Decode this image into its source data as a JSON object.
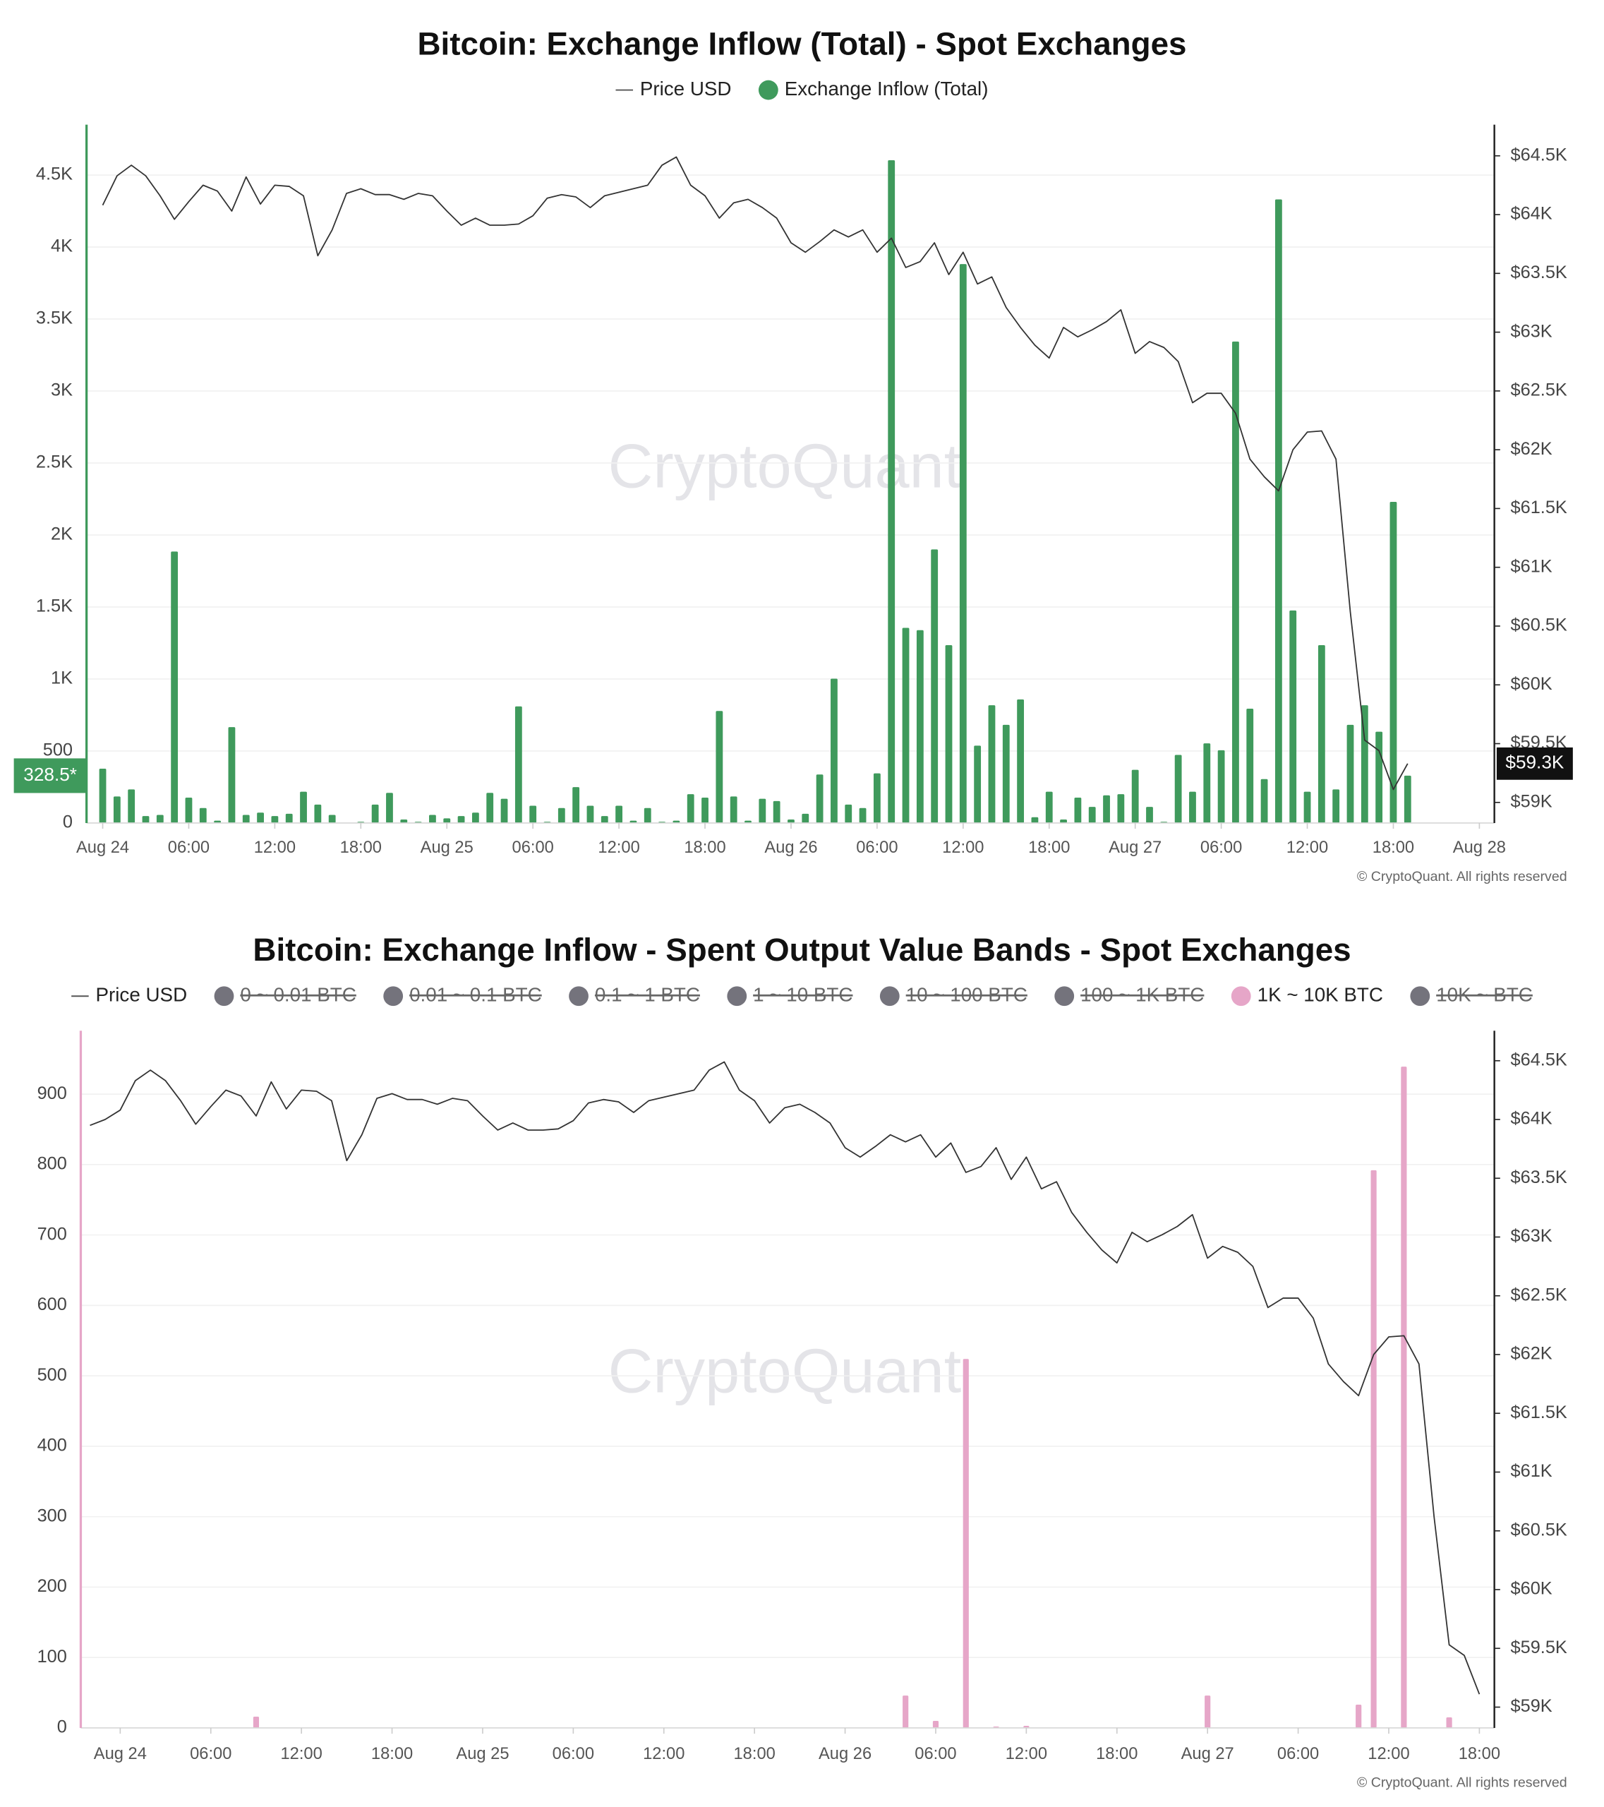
{
  "chart_data": [
    {
      "type": "bar",
      "title": "Bitcoin: Exchange Inflow (Total) - Spot Exchanges",
      "watermark": "CryptoQuant",
      "copyright": "© CryptoQuant. All rights reserved",
      "grid": true,
      "categories": [
        "Aug 24",
        null,
        null,
        null,
        null,
        null,
        "06:00",
        null,
        null,
        null,
        null,
        null,
        "12:00",
        null,
        null,
        null,
        null,
        null,
        "18:00",
        null,
        null,
        null,
        null,
        null,
        "Aug 25",
        null,
        null,
        null,
        null,
        null,
        "06:00",
        null,
        null,
        null,
        null,
        null,
        "12:00",
        null,
        null,
        null,
        null,
        null,
        "18:00",
        null,
        null,
        null,
        null,
        null,
        "Aug 26",
        null,
        null,
        null,
        null,
        null,
        "06:00",
        null,
        null,
        null,
        null,
        null,
        "12:00",
        null,
        null,
        null,
        null,
        null,
        "18:00",
        null,
        null,
        null,
        null,
        null,
        "Aug 27",
        null,
        null,
        null,
        null,
        null,
        "06:00",
        null,
        null,
        null,
        null,
        null,
        "12:00",
        null,
        null,
        null,
        null,
        null,
        "18:00",
        null,
        null,
        null,
        null,
        null,
        "Aug 28"
      ],
      "series": [
        {
          "name": "Price USD",
          "type": "line",
          "axis": "y2",
          "color": "#333333",
          "values": [
            64080,
            64330,
            64420,
            64330,
            64160,
            63960,
            64110,
            64250,
            64200,
            64030,
            64320,
            64090,
            64250,
            64240,
            64160,
            63650,
            63870,
            64180,
            64220,
            64170,
            64170,
            64130,
            64180,
            64160,
            64030,
            63910,
            63970,
            63910,
            63910,
            63920,
            63990,
            64140,
            64170,
            64150,
            64060,
            64160,
            64190,
            64220,
            64250,
            64420,
            64490,
            64250,
            64160,
            63970,
            64100,
            64130,
            64060,
            63970,
            63760,
            63680,
            63770,
            63870,
            63810,
            63870,
            63680,
            63800,
            63550,
            63600,
            63760,
            63490,
            63680,
            63410,
            63470,
            63210,
            63040,
            62890,
            62780,
            63040,
            62960,
            63020,
            63090,
            63190,
            62820,
            62920,
            62870,
            62750,
            62400,
            62480,
            62480,
            62310,
            61920,
            61770,
            61650,
            62000,
            62150,
            62160,
            61920,
            60620,
            59530,
            59440,
            59110,
            59330,
            null,
            null,
            null,
            null,
            null
          ]
        },
        {
          "name": "Exchange Inflow (Total)",
          "type": "bar",
          "color": "#3f9a5c",
          "values": [
            377,
            184,
            233,
            48,
            56,
            1885,
            176,
            104,
            16,
            666,
            56,
            72,
            48,
            64,
            217,
            128,
            56,
            0,
            8,
            128,
            209,
            24,
            8,
            56,
            32,
            48,
            72,
            209,
            168,
            810,
            120,
            8,
            104,
            249,
            120,
            48,
            120,
            16,
            104,
            8,
            16,
            200,
            176,
            778,
            184,
            16,
            168,
            152,
            24,
            64,
            337,
            1002,
            128,
            104,
            345,
            4603,
            1355,
            1339,
            1900,
            1235,
            3882,
            537,
            818,
            682,
            858,
            40,
            217,
            24,
            176,
            112,
            192,
            200,
            369,
            112,
            8,
            473,
            217,
            553,
            505,
            3344,
            794,
            305,
            4331,
            1476,
            217,
            1235,
            233,
            682,
            818,
            634,
            2230,
            328.5,
            null,
            null,
            null,
            null,
            null
          ]
        }
      ],
      "ylim": [
        0,
        4850
      ],
      "yticks": [
        0,
        500,
        {
          "value": 1000,
          "label": "1K"
        },
        {
          "value": 1500,
          "label": "1.5K"
        },
        {
          "value": 2000,
          "label": "2K"
        },
        {
          "value": 2500,
          "label": "2.5K"
        },
        {
          "value": 3000,
          "label": "3K"
        },
        {
          "value": 3500,
          "label": "3.5K"
        },
        {
          "value": 4000,
          "label": "4K"
        },
        {
          "value": 4500,
          "label": "4.5K"
        }
      ],
      "y2lim": [
        58825,
        64765
      ],
      "y2ticks": [
        {
          "value": 59000,
          "label": "$59K"
        },
        {
          "value": 59500,
          "label": "$59.5K"
        },
        {
          "value": 60000,
          "label": "$60K"
        },
        {
          "value": 60500,
          "label": "$60.5K"
        },
        {
          "value": 61000,
          "label": "$61K"
        },
        {
          "value": 61500,
          "label": "$61.5K"
        },
        {
          "value": 62000,
          "label": "$62K"
        },
        {
          "value": 62500,
          "label": "$62.5K"
        },
        {
          "value": 63000,
          "label": "$63K"
        },
        {
          "value": 63500,
          "label": "$63.5K"
        },
        {
          "value": 64000,
          "label": "$64K"
        },
        {
          "value": 64500,
          "label": "$64.5K"
        }
      ],
      "value_tags": [
        {
          "axis": "y",
          "value": 328.5,
          "label": "328.5*"
        },
        {
          "axis": "y2",
          "value": 59330,
          "label": "$59.3K"
        }
      ]
    },
    {
      "type": "bar",
      "title": "Bitcoin: Exchange Inflow - Spent Output Value Bands - Spot Exchanges",
      "watermark": "CryptoQuant",
      "copyright": "© CryptoQuant. All rights reserved",
      "grid": true,
      "categories": [
        null,
        null,
        "Aug 24",
        null,
        null,
        null,
        null,
        null,
        "06:00",
        null,
        null,
        null,
        null,
        null,
        "12:00",
        null,
        null,
        null,
        null,
        null,
        "18:00",
        null,
        null,
        null,
        null,
        null,
        "Aug 25",
        null,
        null,
        null,
        null,
        null,
        "06:00",
        null,
        null,
        null,
        null,
        null,
        "12:00",
        null,
        null,
        null,
        null,
        null,
        "18:00",
        null,
        null,
        null,
        null,
        null,
        "Aug 26",
        null,
        null,
        null,
        null,
        null,
        "06:00",
        null,
        null,
        null,
        null,
        null,
        "12:00",
        null,
        null,
        null,
        null,
        null,
        "18:00",
        null,
        null,
        null,
        null,
        null,
        "Aug 27",
        null,
        null,
        null,
        null,
        null,
        "06:00",
        null,
        null,
        null,
        null,
        null,
        "12:00",
        null,
        null,
        null,
        null,
        null,
        "18:00"
      ],
      "series": [
        {
          "name": "Price USD",
          "type": "line",
          "axis": "y2",
          "color": "#333333",
          "values": [
            63950,
            64000,
            64080,
            64330,
            64420,
            64330,
            64160,
            63960,
            64110,
            64250,
            64200,
            64030,
            64320,
            64090,
            64250,
            64240,
            64160,
            63650,
            63870,
            64180,
            64220,
            64170,
            64170,
            64130,
            64180,
            64160,
            64030,
            63910,
            63970,
            63910,
            63910,
            63920,
            63990,
            64140,
            64170,
            64150,
            64060,
            64160,
            64190,
            64220,
            64250,
            64420,
            64490,
            64250,
            64160,
            63970,
            64100,
            64130,
            64060,
            63970,
            63760,
            63680,
            63770,
            63870,
            63810,
            63870,
            63680,
            63800,
            63550,
            63600,
            63760,
            63490,
            63680,
            63410,
            63470,
            63210,
            63040,
            62890,
            62780,
            63040,
            62960,
            63020,
            63090,
            63190,
            62820,
            62920,
            62870,
            62750,
            62400,
            62480,
            62480,
            62310,
            61920,
            61770,
            61650,
            62000,
            62150,
            62160,
            61920,
            60620,
            59530,
            59440,
            59110
          ]
        },
        {
          "name": "0 ~ 0.01 BTC",
          "color": "#74737c",
          "hidden": true
        },
        {
          "name": "0.01 ~ 0.1 BTC",
          "color": "#74737c",
          "hidden": true
        },
        {
          "name": "0.1 ~ 1 BTC",
          "color": "#74737c",
          "hidden": true
        },
        {
          "name": "1 ~ 10 BTC",
          "color": "#74737c",
          "hidden": true
        },
        {
          "name": "10 ~ 100 BTC",
          "color": "#74737c",
          "hidden": true
        },
        {
          "name": "100 ~ 1K BTC",
          "color": "#74737c",
          "hidden": true
        },
        {
          "name": "1K ~ 10K BTC",
          "type": "bar",
          "color": "#e6a6c8",
          "values": [
            0,
            0,
            0,
            0,
            0,
            0,
            0,
            0,
            0,
            0,
            0,
            16,
            0,
            0,
            0,
            0,
            0,
            0,
            0,
            0,
            0,
            0,
            0,
            0,
            0,
            0,
            0,
            0,
            0,
            0,
            0,
            0,
            0,
            0,
            0,
            0,
            0,
            0,
            0,
            0,
            0,
            0,
            0,
            0,
            0,
            0,
            0,
            0,
            0,
            0,
            0,
            0,
            0,
            0,
            46,
            0,
            10,
            0,
            524,
            0,
            2,
            0,
            3,
            0,
            0,
            0,
            0,
            0,
            0,
            0,
            0,
            0,
            0,
            0,
            46,
            0,
            0,
            0,
            0,
            0,
            0,
            0,
            0,
            0,
            33,
            792,
            0,
            939,
            0,
            0,
            15,
            0,
            0
          ]
        },
        {
          "name": "10K ~ BTC",
          "color": "#74737c",
          "hidden": true
        }
      ],
      "ylim": [
        0,
        990
      ],
      "yticks": [
        0,
        100,
        200,
        300,
        400,
        500,
        600,
        700,
        800,
        900
      ],
      "y2lim": [
        58823,
        64755
      ],
      "y2ticks": [
        {
          "value": 59000,
          "label": "$59K"
        },
        {
          "value": 59500,
          "label": "$59.5K"
        },
        {
          "value": 60000,
          "label": "$60K"
        },
        {
          "value": 60500,
          "label": "$60.5K"
        },
        {
          "value": 61000,
          "label": "$61K"
        },
        {
          "value": 61500,
          "label": "$61.5K"
        },
        {
          "value": 62000,
          "label": "$62K"
        },
        {
          "value": 62500,
          "label": "$62.5K"
        },
        {
          "value": 63000,
          "label": "$63K"
        },
        {
          "value": 63500,
          "label": "$63.5K"
        },
        {
          "value": 64000,
          "label": "$64K"
        },
        {
          "value": 64500,
          "label": "$64.5K"
        }
      ]
    }
  ]
}
